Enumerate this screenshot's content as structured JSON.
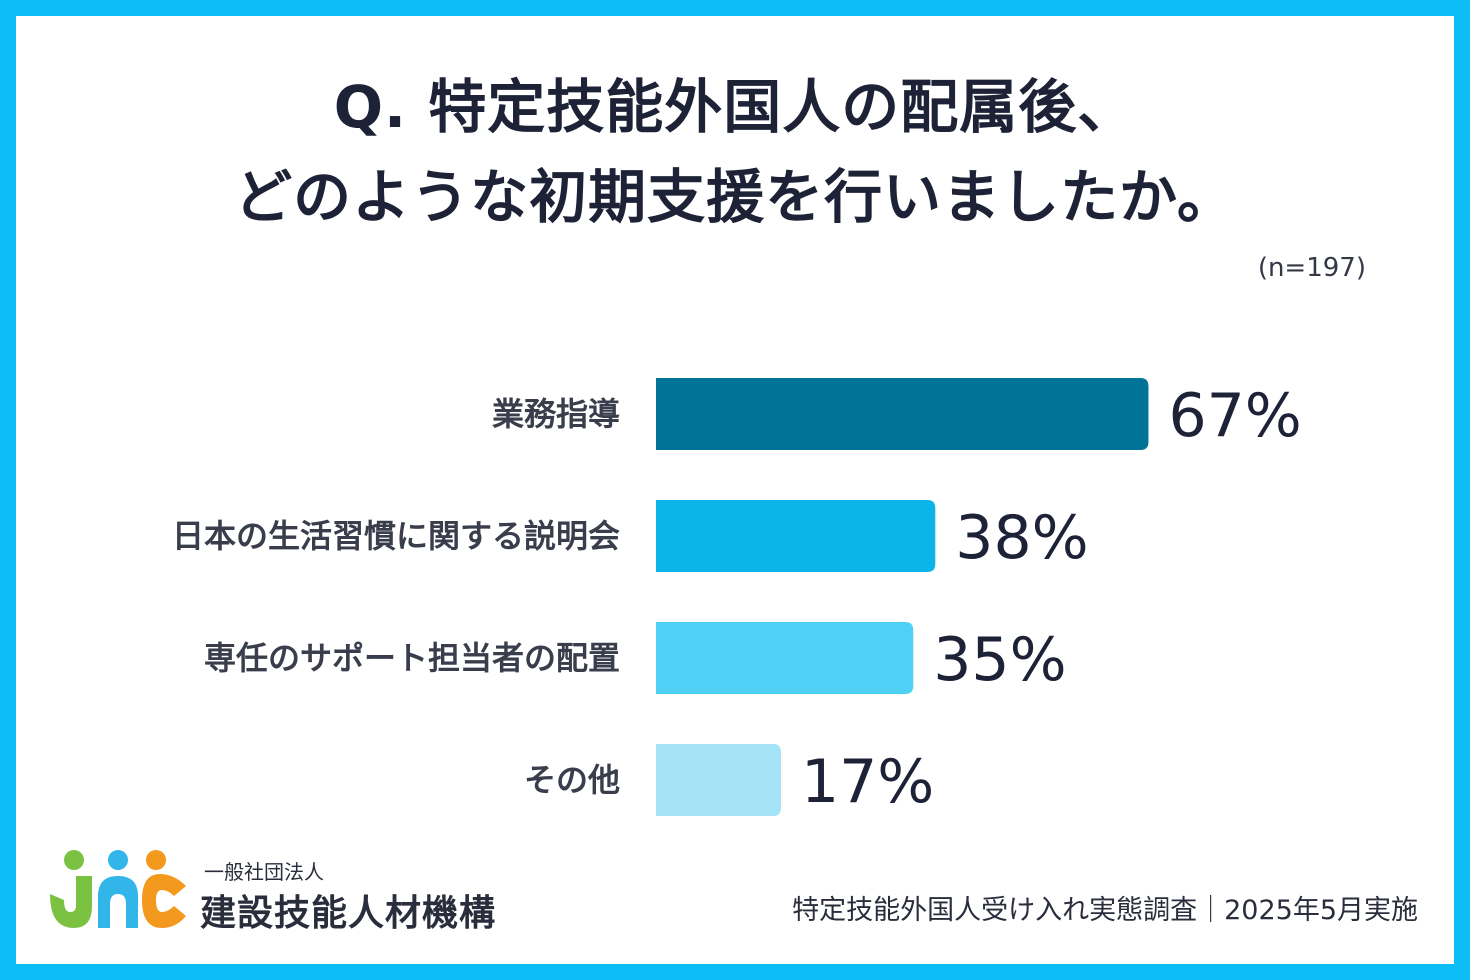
{
  "title_line1": "Q. 特定技能外国人の配属後、",
  "title_line2": "どのような初期支援を行いましたか。",
  "sample_size": "(n=197)",
  "chart_data": {
    "type": "bar",
    "orientation": "horizontal",
    "categories": [
      "業務指導",
      "日本の生活習慣に関する説明会",
      "専任のサポート担当者の配置",
      "その他"
    ],
    "values": [
      67,
      38,
      35,
      17
    ],
    "value_labels": [
      "67%",
      "38%",
      "35%",
      "17%"
    ],
    "colors": [
      "#007396",
      "#0ab4e6",
      "#4fd0f5",
      "#a4e4f6"
    ],
    "xlim": [
      0,
      100
    ],
    "grid": false
  },
  "footer": {
    "org_type": "一般社団法人",
    "org_name": "建設技能人材機構",
    "source": "特定技能外国人受け入れ実態調査｜2025年5月実施"
  },
  "logo": {
    "colors": [
      "#7cc242",
      "#32b5e9",
      "#f39a1e"
    ]
  }
}
